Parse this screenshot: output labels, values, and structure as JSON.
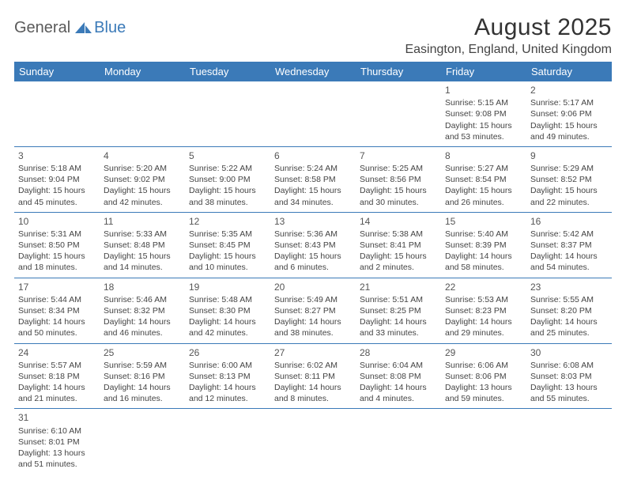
{
  "logo": {
    "part1": "General",
    "part2": "Blue"
  },
  "title": "August 2025",
  "location": "Easington, England, United Kingdom",
  "colors": {
    "header_bg": "#3b7ab8",
    "header_text": "#ffffff",
    "border": "#3b7ab8",
    "body_text": "#444444",
    "background": "#ffffff"
  },
  "day_headers": [
    "Sunday",
    "Monday",
    "Tuesday",
    "Wednesday",
    "Thursday",
    "Friday",
    "Saturday"
  ],
  "weeks": [
    [
      null,
      null,
      null,
      null,
      null,
      {
        "n": "1",
        "sr": "Sunrise: 5:15 AM",
        "ss": "Sunset: 9:08 PM",
        "d1": "Daylight: 15 hours",
        "d2": "and 53 minutes."
      },
      {
        "n": "2",
        "sr": "Sunrise: 5:17 AM",
        "ss": "Sunset: 9:06 PM",
        "d1": "Daylight: 15 hours",
        "d2": "and 49 minutes."
      }
    ],
    [
      {
        "n": "3",
        "sr": "Sunrise: 5:18 AM",
        "ss": "Sunset: 9:04 PM",
        "d1": "Daylight: 15 hours",
        "d2": "and 45 minutes."
      },
      {
        "n": "4",
        "sr": "Sunrise: 5:20 AM",
        "ss": "Sunset: 9:02 PM",
        "d1": "Daylight: 15 hours",
        "d2": "and 42 minutes."
      },
      {
        "n": "5",
        "sr": "Sunrise: 5:22 AM",
        "ss": "Sunset: 9:00 PM",
        "d1": "Daylight: 15 hours",
        "d2": "and 38 minutes."
      },
      {
        "n": "6",
        "sr": "Sunrise: 5:24 AM",
        "ss": "Sunset: 8:58 PM",
        "d1": "Daylight: 15 hours",
        "d2": "and 34 minutes."
      },
      {
        "n": "7",
        "sr": "Sunrise: 5:25 AM",
        "ss": "Sunset: 8:56 PM",
        "d1": "Daylight: 15 hours",
        "d2": "and 30 minutes."
      },
      {
        "n": "8",
        "sr": "Sunrise: 5:27 AM",
        "ss": "Sunset: 8:54 PM",
        "d1": "Daylight: 15 hours",
        "d2": "and 26 minutes."
      },
      {
        "n": "9",
        "sr": "Sunrise: 5:29 AM",
        "ss": "Sunset: 8:52 PM",
        "d1": "Daylight: 15 hours",
        "d2": "and 22 minutes."
      }
    ],
    [
      {
        "n": "10",
        "sr": "Sunrise: 5:31 AM",
        "ss": "Sunset: 8:50 PM",
        "d1": "Daylight: 15 hours",
        "d2": "and 18 minutes."
      },
      {
        "n": "11",
        "sr": "Sunrise: 5:33 AM",
        "ss": "Sunset: 8:48 PM",
        "d1": "Daylight: 15 hours",
        "d2": "and 14 minutes."
      },
      {
        "n": "12",
        "sr": "Sunrise: 5:35 AM",
        "ss": "Sunset: 8:45 PM",
        "d1": "Daylight: 15 hours",
        "d2": "and 10 minutes."
      },
      {
        "n": "13",
        "sr": "Sunrise: 5:36 AM",
        "ss": "Sunset: 8:43 PM",
        "d1": "Daylight: 15 hours",
        "d2": "and 6 minutes."
      },
      {
        "n": "14",
        "sr": "Sunrise: 5:38 AM",
        "ss": "Sunset: 8:41 PM",
        "d1": "Daylight: 15 hours",
        "d2": "and 2 minutes."
      },
      {
        "n": "15",
        "sr": "Sunrise: 5:40 AM",
        "ss": "Sunset: 8:39 PM",
        "d1": "Daylight: 14 hours",
        "d2": "and 58 minutes."
      },
      {
        "n": "16",
        "sr": "Sunrise: 5:42 AM",
        "ss": "Sunset: 8:37 PM",
        "d1": "Daylight: 14 hours",
        "d2": "and 54 minutes."
      }
    ],
    [
      {
        "n": "17",
        "sr": "Sunrise: 5:44 AM",
        "ss": "Sunset: 8:34 PM",
        "d1": "Daylight: 14 hours",
        "d2": "and 50 minutes."
      },
      {
        "n": "18",
        "sr": "Sunrise: 5:46 AM",
        "ss": "Sunset: 8:32 PM",
        "d1": "Daylight: 14 hours",
        "d2": "and 46 minutes."
      },
      {
        "n": "19",
        "sr": "Sunrise: 5:48 AM",
        "ss": "Sunset: 8:30 PM",
        "d1": "Daylight: 14 hours",
        "d2": "and 42 minutes."
      },
      {
        "n": "20",
        "sr": "Sunrise: 5:49 AM",
        "ss": "Sunset: 8:27 PM",
        "d1": "Daylight: 14 hours",
        "d2": "and 38 minutes."
      },
      {
        "n": "21",
        "sr": "Sunrise: 5:51 AM",
        "ss": "Sunset: 8:25 PM",
        "d1": "Daylight: 14 hours",
        "d2": "and 33 minutes."
      },
      {
        "n": "22",
        "sr": "Sunrise: 5:53 AM",
        "ss": "Sunset: 8:23 PM",
        "d1": "Daylight: 14 hours",
        "d2": "and 29 minutes."
      },
      {
        "n": "23",
        "sr": "Sunrise: 5:55 AM",
        "ss": "Sunset: 8:20 PM",
        "d1": "Daylight: 14 hours",
        "d2": "and 25 minutes."
      }
    ],
    [
      {
        "n": "24",
        "sr": "Sunrise: 5:57 AM",
        "ss": "Sunset: 8:18 PM",
        "d1": "Daylight: 14 hours",
        "d2": "and 21 minutes."
      },
      {
        "n": "25",
        "sr": "Sunrise: 5:59 AM",
        "ss": "Sunset: 8:16 PM",
        "d1": "Daylight: 14 hours",
        "d2": "and 16 minutes."
      },
      {
        "n": "26",
        "sr": "Sunrise: 6:00 AM",
        "ss": "Sunset: 8:13 PM",
        "d1": "Daylight: 14 hours",
        "d2": "and 12 minutes."
      },
      {
        "n": "27",
        "sr": "Sunrise: 6:02 AM",
        "ss": "Sunset: 8:11 PM",
        "d1": "Daylight: 14 hours",
        "d2": "and 8 minutes."
      },
      {
        "n": "28",
        "sr": "Sunrise: 6:04 AM",
        "ss": "Sunset: 8:08 PM",
        "d1": "Daylight: 14 hours",
        "d2": "and 4 minutes."
      },
      {
        "n": "29",
        "sr": "Sunrise: 6:06 AM",
        "ss": "Sunset: 8:06 PM",
        "d1": "Daylight: 13 hours",
        "d2": "and 59 minutes."
      },
      {
        "n": "30",
        "sr": "Sunrise: 6:08 AM",
        "ss": "Sunset: 8:03 PM",
        "d1": "Daylight: 13 hours",
        "d2": "and 55 minutes."
      }
    ],
    [
      {
        "n": "31",
        "sr": "Sunrise: 6:10 AM",
        "ss": "Sunset: 8:01 PM",
        "d1": "Daylight: 13 hours",
        "d2": "and 51 minutes."
      },
      null,
      null,
      null,
      null,
      null,
      null
    ]
  ]
}
